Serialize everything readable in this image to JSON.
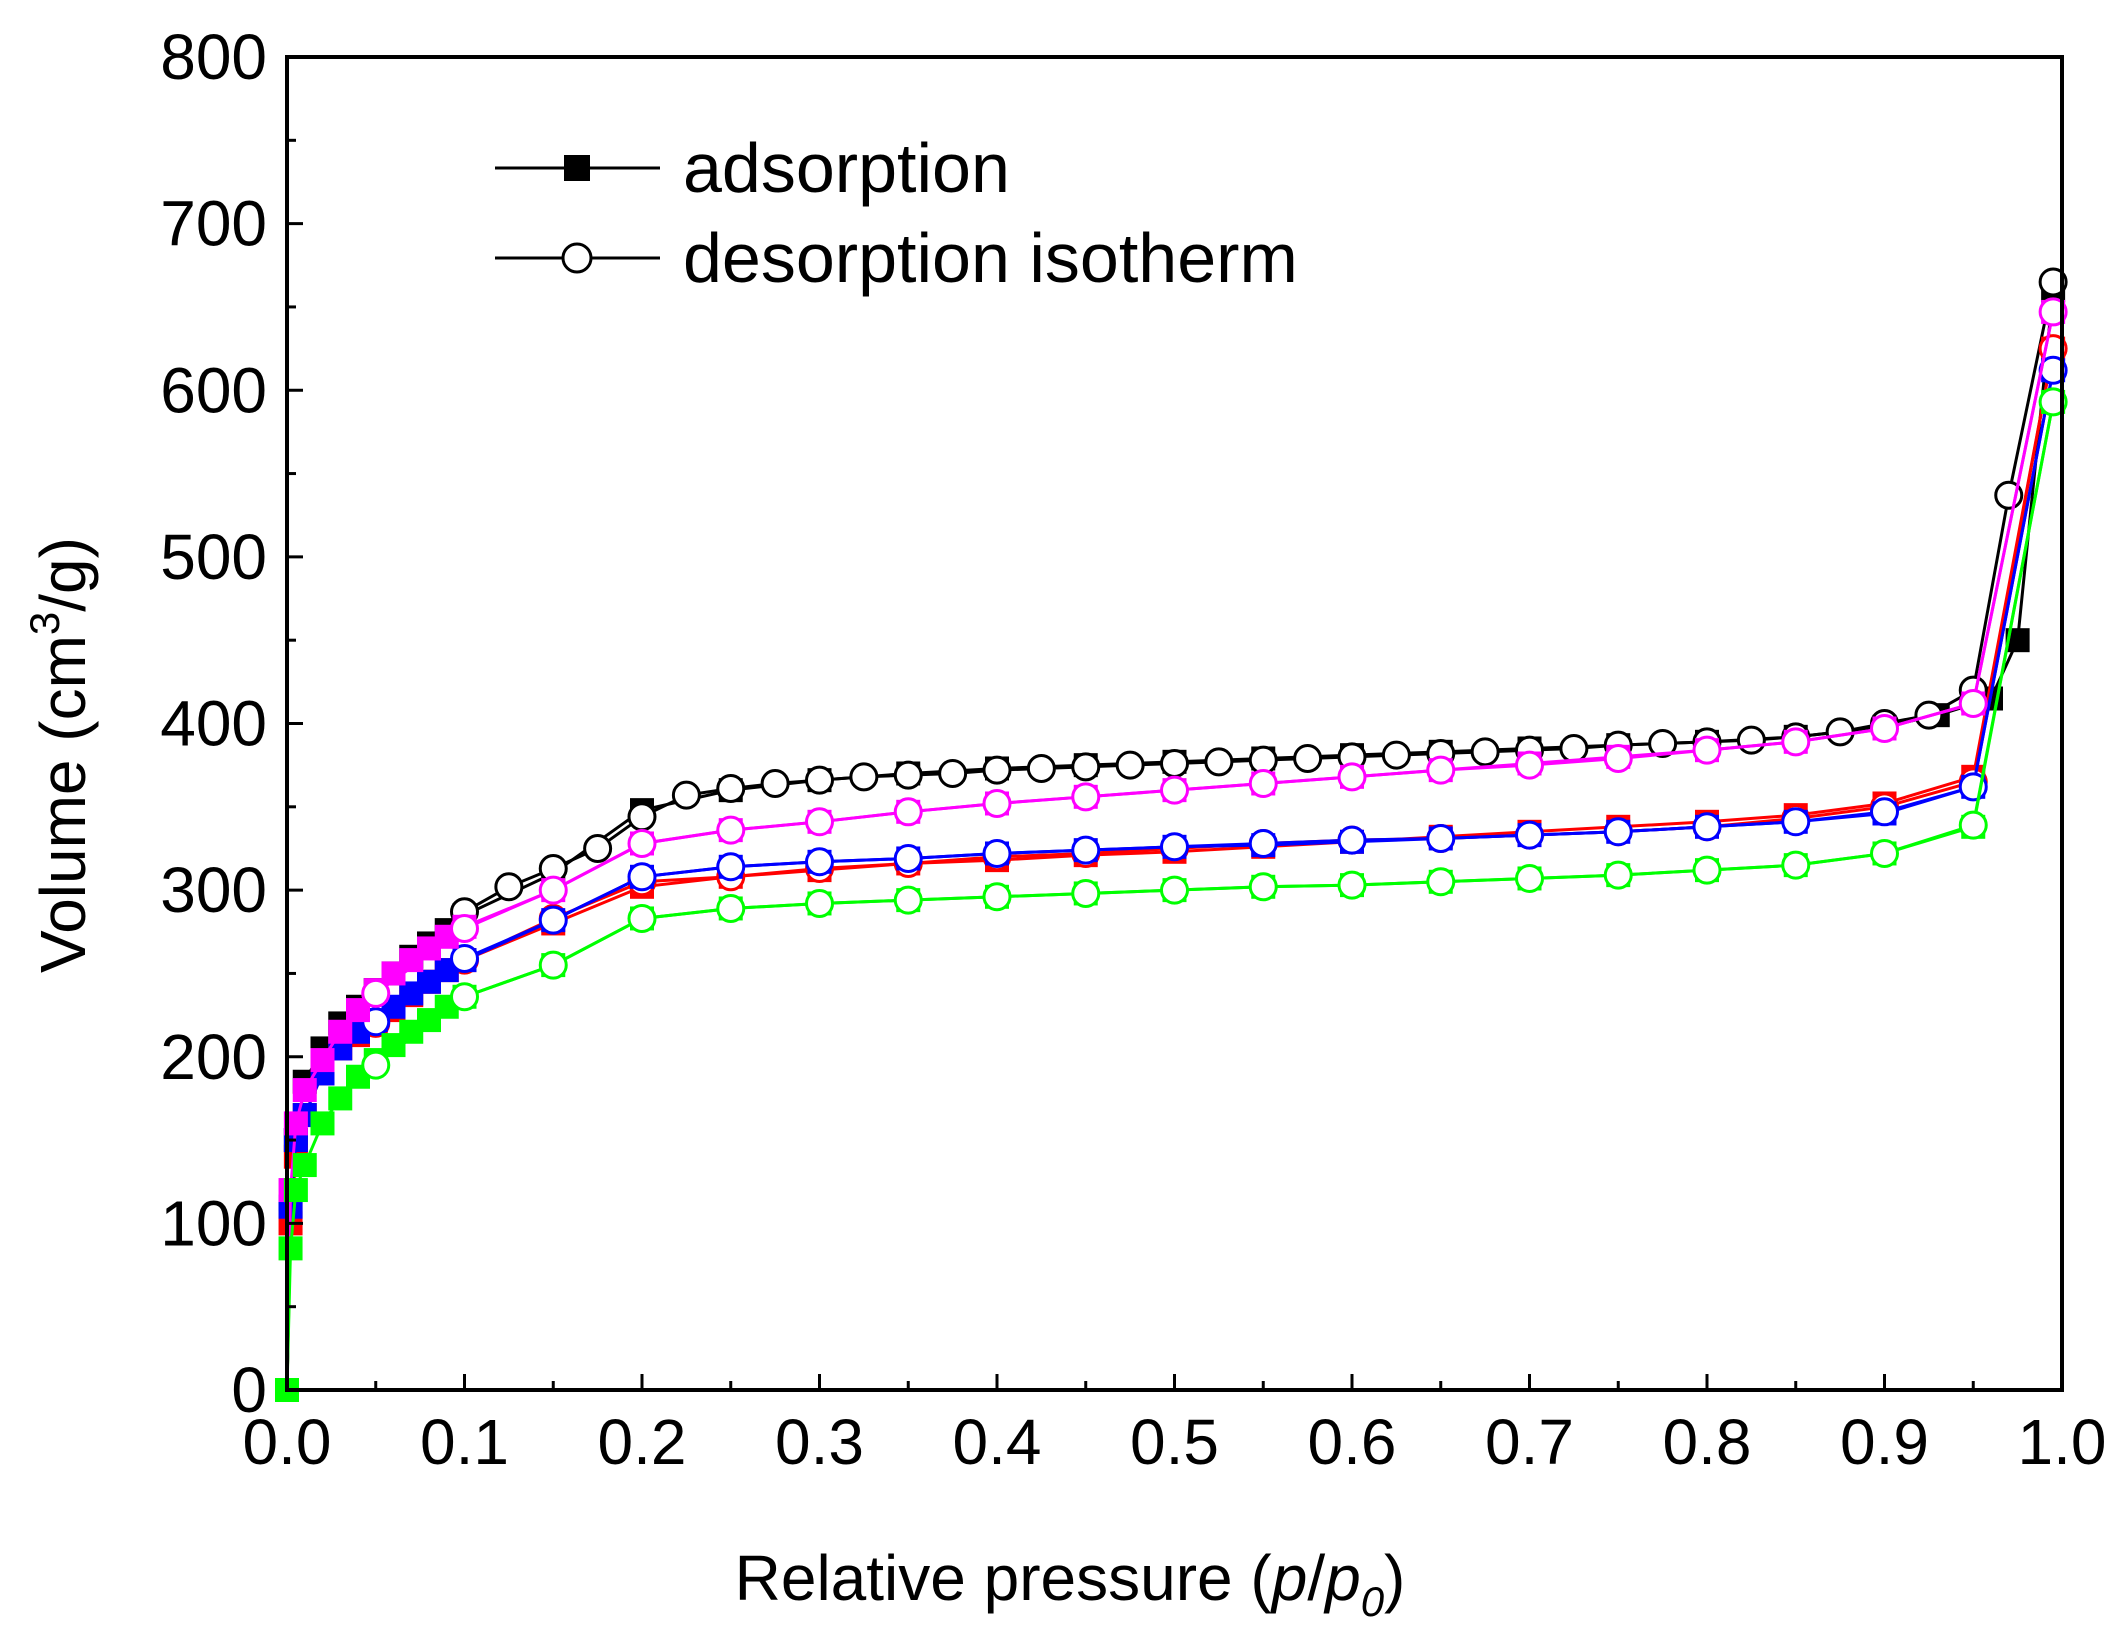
{
  "chart_data": {
    "type": "line",
    "title": "",
    "xlabel_prefix": "Relative pressure (",
    "xlabel_p": "p",
    "xlabel_slash": "/",
    "xlabel_p0": "p",
    "xlabel_sub": "0",
    "xlabel_suffix": ")",
    "ylabel_prefix": "Volume (cm",
    "ylabel_sup": "3",
    "ylabel_suffix": "/g)",
    "xlim": [
      0.0,
      1.0
    ],
    "ylim": [
      0,
      800
    ],
    "xticks": [
      "0.0",
      "0.1",
      "0.2",
      "0.3",
      "0.4",
      "0.5",
      "0.6",
      "0.7",
      "0.8",
      "0.9",
      "1.0"
    ],
    "yticks": [
      "0",
      "100",
      "200",
      "300",
      "400",
      "500",
      "600",
      "700",
      "800"
    ],
    "legend": {
      "position": "top-left",
      "entries": [
        {
          "label": "adsorption",
          "marker": "filled-square"
        },
        {
          "label": "desorption isotherm",
          "marker": "open-circle"
        }
      ]
    },
    "series": [
      {
        "name": "black",
        "color": "#000000",
        "adsorption": {
          "x": [
            0.0,
            0.002,
            0.005,
            0.01,
            0.02,
            0.03,
            0.04,
            0.05,
            0.06,
            0.07,
            0.08,
            0.09,
            0.1,
            0.15,
            0.2,
            0.25,
            0.3,
            0.35,
            0.4,
            0.45,
            0.5,
            0.55,
            0.6,
            0.65,
            0.7,
            0.75,
            0.8,
            0.85,
            0.9,
            0.93,
            0.96,
            0.975,
            0.995
          ],
          "y": [
            0,
            110,
            150,
            185,
            205,
            220,
            230,
            240,
            250,
            260,
            268,
            276,
            285,
            310,
            348,
            360,
            366,
            370,
            373,
            375,
            377,
            379,
            381,
            383,
            385,
            387,
            389,
            392,
            398,
            405,
            415,
            450,
            660
          ]
        },
        "desorption": {
          "x": [
            0.995,
            0.97,
            0.95,
            0.925,
            0.9,
            0.875,
            0.85,
            0.825,
            0.8,
            0.775,
            0.75,
            0.725,
            0.7,
            0.675,
            0.65,
            0.625,
            0.6,
            0.575,
            0.55,
            0.525,
            0.5,
            0.475,
            0.45,
            0.425,
            0.4,
            0.375,
            0.35,
            0.325,
            0.3,
            0.275,
            0.25,
            0.225,
            0.2,
            0.175,
            0.15,
            0.125,
            0.1
          ],
          "y": [
            665,
            537,
            420,
            405,
            400,
            395,
            392,
            390,
            389,
            388,
            387,
            385,
            384,
            383,
            382,
            381,
            380,
            379,
            378,
            377,
            376,
            375,
            374,
            373,
            372,
            370,
            369,
            368,
            366,
            364,
            361,
            357,
            344,
            325,
            313,
            302,
            287
          ]
        }
      },
      {
        "name": "red",
        "color": "#ff0000",
        "adsorption": {
          "x": [
            0.0,
            0.002,
            0.005,
            0.01,
            0.02,
            0.03,
            0.04,
            0.05,
            0.06,
            0.07,
            0.08,
            0.09,
            0.1,
            0.15,
            0.2,
            0.25,
            0.3,
            0.35,
            0.4,
            0.45,
            0.5,
            0.55,
            0.6,
            0.65,
            0.7,
            0.75,
            0.8,
            0.85,
            0.9,
            0.95,
            0.995
          ],
          "y": [
            0,
            100,
            140,
            165,
            190,
            205,
            213,
            220,
            228,
            237,
            245,
            252,
            258,
            280,
            302,
            308,
            312,
            316,
            318,
            321,
            323,
            326,
            329,
            332,
            335,
            338,
            341,
            345,
            352,
            368,
            625
          ]
        },
        "desorption": {
          "x": [
            0.995,
            0.95,
            0.9,
            0.85,
            0.8,
            0.75,
            0.7,
            0.65,
            0.6,
            0.55,
            0.5,
            0.45,
            0.4,
            0.35,
            0.3,
            0.25,
            0.2,
            0.15,
            0.1,
            0.05
          ],
          "y": [
            625,
            365,
            350,
            343,
            338,
            335,
            333,
            331,
            330,
            328,
            325,
            322,
            320,
            316,
            313,
            308,
            305,
            283,
            258,
            220
          ]
        }
      },
      {
        "name": "blue",
        "color": "#0000ff",
        "adsorption": {
          "x": [
            0.0,
            0.002,
            0.005,
            0.01,
            0.02,
            0.03,
            0.04,
            0.05,
            0.06,
            0.07,
            0.08,
            0.09,
            0.1,
            0.15,
            0.2,
            0.25,
            0.3,
            0.35,
            0.4,
            0.45,
            0.5,
            0.55,
            0.6,
            0.65,
            0.7,
            0.75,
            0.8,
            0.85,
            0.9,
            0.95,
            0.995
          ],
          "y": [
            0,
            110,
            150,
            165,
            190,
            205,
            215,
            222,
            230,
            238,
            245,
            252,
            258,
            282,
            308,
            314,
            317,
            319,
            322,
            324,
            326,
            327,
            329,
            331,
            333,
            335,
            338,
            341,
            346,
            362,
            612
          ]
        },
        "desorption": {
          "x": [
            0.995,
            0.95,
            0.9,
            0.85,
            0.8,
            0.75,
            0.7,
            0.65,
            0.6,
            0.55,
            0.5,
            0.45,
            0.4,
            0.35,
            0.3,
            0.25,
            0.2,
            0.15,
            0.1,
            0.05
          ],
          "y": [
            612,
            362,
            347,
            341,
            338,
            335,
            333,
            331,
            330,
            328,
            326,
            324,
            322,
            319,
            317,
            314,
            308,
            282,
            259,
            221
          ]
        }
      },
      {
        "name": "magenta",
        "color": "#ff00ff",
        "adsorption": {
          "x": [
            0.0,
            0.002,
            0.005,
            0.01,
            0.02,
            0.03,
            0.04,
            0.05,
            0.06,
            0.07,
            0.08,
            0.09,
            0.1,
            0.15,
            0.2,
            0.25,
            0.3,
            0.35,
            0.4,
            0.45,
            0.5,
            0.55,
            0.6,
            0.65,
            0.7,
            0.75,
            0.8,
            0.85,
            0.9,
            0.95,
            0.995
          ],
          "y": [
            0,
            120,
            160,
            180,
            198,
            215,
            228,
            240,
            250,
            258,
            265,
            272,
            278,
            300,
            328,
            336,
            341,
            347,
            352,
            356,
            360,
            364,
            368,
            372,
            376,
            380,
            384,
            389,
            397,
            412,
            647
          ]
        },
        "desorption": {
          "x": [
            0.995,
            0.95,
            0.9,
            0.85,
            0.8,
            0.75,
            0.7,
            0.65,
            0.6,
            0.55,
            0.5,
            0.45,
            0.4,
            0.35,
            0.3,
            0.25,
            0.2,
            0.15,
            0.1,
            0.05
          ],
          "y": [
            647,
            412,
            397,
            389,
            384,
            379,
            375,
            372,
            368,
            364,
            360,
            356,
            352,
            347,
            341,
            336,
            328,
            300,
            277,
            238
          ]
        }
      },
      {
        "name": "green",
        "color": "#00ff00",
        "adsorption": {
          "x": [
            0.0,
            0.002,
            0.005,
            0.01,
            0.02,
            0.03,
            0.04,
            0.05,
            0.06,
            0.07,
            0.08,
            0.09,
            0.1,
            0.15,
            0.2,
            0.25,
            0.3,
            0.35,
            0.4,
            0.45,
            0.5,
            0.55,
            0.6,
            0.65,
            0.7,
            0.75,
            0.8,
            0.85,
            0.9,
            0.95,
            0.995
          ],
          "y": [
            0,
            85,
            120,
            135,
            160,
            175,
            188,
            198,
            207,
            215,
            222,
            230,
            236,
            255,
            283,
            289,
            292,
            294,
            296,
            298,
            300,
            302,
            303,
            305,
            307,
            309,
            312,
            315,
            322,
            338,
            593
          ]
        },
        "desorption": {
          "x": [
            0.995,
            0.95,
            0.9,
            0.85,
            0.8,
            0.75,
            0.7,
            0.65,
            0.6,
            0.55,
            0.5,
            0.45,
            0.4,
            0.35,
            0.3,
            0.25,
            0.2,
            0.15,
            0.1,
            0.05
          ],
          "y": [
            593,
            339,
            322,
            315,
            312,
            309,
            307,
            305,
            303,
            302,
            300,
            298,
            296,
            294,
            292,
            289,
            283,
            255,
            236,
            195
          ]
        }
      }
    ]
  }
}
